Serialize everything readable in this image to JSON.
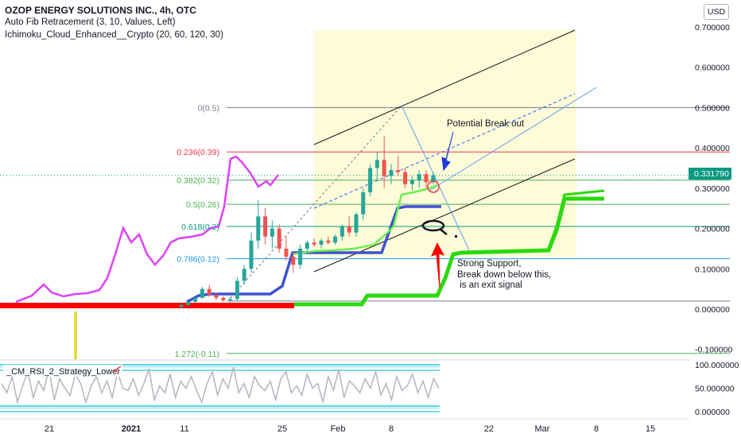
{
  "header": {
    "title": "OZOP ENERGY SOLUTIONS INC., 4h, OTC",
    "indicator1": "Auto Fib Retracement (3, 10, Values, Left)",
    "indicator2": "Ichimoku_Cloud_Enhanced__Crypto (20, 60, 120, 30)"
  },
  "currency_button": "USD",
  "chart_data": {
    "type": "candlestick",
    "symbol": "OZOP",
    "timeframe": "4h",
    "exchange": "OTC",
    "y_axis": {
      "min": -0.12,
      "max": 0.72,
      "ticks": [
        "0.700000",
        "0.600000",
        "0.500000",
        "0.400000",
        "0.300000",
        "0.200000",
        "0.100000",
        "0.000000",
        "-0.100000"
      ]
    },
    "x_axis": {
      "ticks": [
        "21",
        "2021",
        "11",
        "25",
        "Feb",
        "8",
        "22",
        "Mar",
        "8",
        "15"
      ]
    },
    "last_price": "0.331790",
    "fib_levels": [
      {
        "label": "0(0.5)",
        "value": 0.5,
        "color": "#787b86"
      },
      {
        "label": "0.236(0.39)",
        "value": 0.39,
        "color": "#f23645"
      },
      {
        "label": "0.382(0.32)",
        "value": 0.32,
        "color": "#4caf50"
      },
      {
        "label": "0.5(0.26)",
        "value": 0.26,
        "color": "#4caf50"
      },
      {
        "label": "0.618(0.2)",
        "value": 0.205,
        "color": "#089981"
      },
      {
        "label": "0.786(0.12)",
        "value": 0.125,
        "color": "#2196f3"
      },
      {
        "label": "1.272(-0.11)",
        "value": -0.11,
        "color": "#4caf50"
      }
    ],
    "annotations": [
      "Potential Break out",
      "Strong Support,",
      "Break down below this,",
      " is an exit signal"
    ],
    "candles": [
      [
        0.005,
        0.012,
        0.003,
        0.01
      ],
      [
        0.01,
        0.02,
        0.008,
        0.018
      ],
      [
        0.018,
        0.03,
        0.015,
        0.028
      ],
      [
        0.028,
        0.055,
        0.025,
        0.05
      ],
      [
        0.05,
        0.06,
        0.03,
        0.035
      ],
      [
        0.035,
        0.04,
        0.022,
        0.028
      ],
      [
        0.028,
        0.032,
        0.018,
        0.022
      ],
      [
        0.022,
        0.03,
        0.015,
        0.025
      ],
      [
        0.025,
        0.08,
        0.02,
        0.07
      ],
      [
        0.07,
        0.11,
        0.06,
        0.1
      ],
      [
        0.1,
        0.19,
        0.09,
        0.17
      ],
      [
        0.17,
        0.27,
        0.15,
        0.23
      ],
      [
        0.23,
        0.25,
        0.16,
        0.18
      ],
      [
        0.18,
        0.22,
        0.15,
        0.2
      ],
      [
        0.2,
        0.21,
        0.14,
        0.15
      ],
      [
        0.15,
        0.18,
        0.12,
        0.13
      ],
      [
        0.13,
        0.14,
        0.09,
        0.11
      ],
      [
        0.11,
        0.16,
        0.1,
        0.15
      ],
      [
        0.15,
        0.17,
        0.14,
        0.165
      ],
      [
        0.165,
        0.175,
        0.155,
        0.16
      ],
      [
        0.16,
        0.175,
        0.15,
        0.17
      ],
      [
        0.17,
        0.18,
        0.16,
        0.165
      ],
      [
        0.165,
        0.185,
        0.16,
        0.18
      ],
      [
        0.18,
        0.21,
        0.17,
        0.205
      ],
      [
        0.205,
        0.23,
        0.18,
        0.19
      ],
      [
        0.19,
        0.24,
        0.18,
        0.235
      ],
      [
        0.235,
        0.3,
        0.22,
        0.29
      ],
      [
        0.29,
        0.36,
        0.28,
        0.35
      ],
      [
        0.35,
        0.39,
        0.32,
        0.37
      ],
      [
        0.37,
        0.43,
        0.3,
        0.33
      ],
      [
        0.33,
        0.36,
        0.31,
        0.345
      ],
      [
        0.345,
        0.38,
        0.33,
        0.34
      ],
      [
        0.34,
        0.35,
        0.3,
        0.31
      ],
      [
        0.31,
        0.33,
        0.295,
        0.32
      ],
      [
        0.32,
        0.345,
        0.3,
        0.335
      ],
      [
        0.335,
        0.345,
        0.3,
        0.315
      ],
      [
        0.315,
        0.34,
        0.31,
        0.332
      ]
    ],
    "rsi_panel": {
      "title": "_CM_RSI_2_Strategy_Lower",
      "ticks": [
        "100.000000",
        "50.000000",
        "0.000000"
      ],
      "values": [
        60,
        40,
        75,
        20,
        55,
        85,
        30,
        65,
        45,
        90,
        25,
        70,
        50,
        35,
        80,
        60,
        20,
        55,
        75,
        40,
        65,
        30,
        85,
        50,
        45,
        70,
        35,
        60,
        90,
        25,
        55,
        40,
        80,
        30,
        65,
        50,
        75,
        45,
        20,
        60,
        85,
        35,
        70,
        50,
        95,
        40,
        60,
        30,
        75,
        55,
        45,
        65,
        25,
        70,
        85,
        40,
        55,
        35,
        80,
        50,
        60,
        20,
        75,
        45,
        90,
        30,
        65,
        55,
        40,
        70,
        50,
        85,
        35,
        60,
        25,
        75,
        45,
        55,
        80,
        40,
        65,
        30,
        70,
        50
      ]
    }
  }
}
